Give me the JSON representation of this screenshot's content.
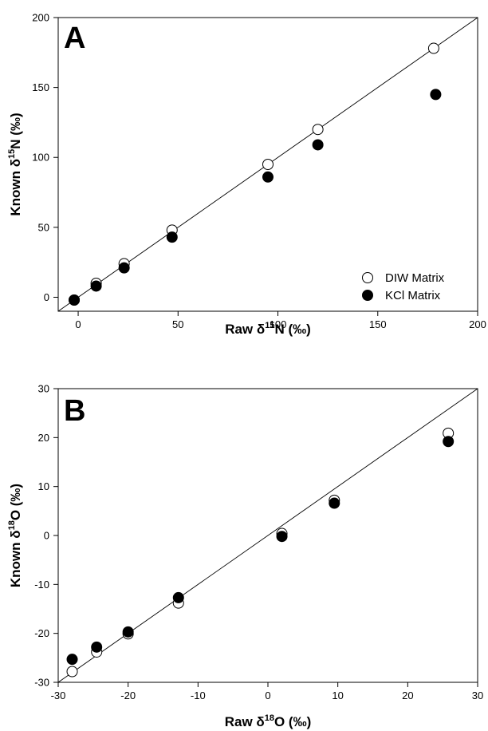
{
  "chart_data": [
    {
      "type": "scatter",
      "panel_label": "A",
      "xlabel": {
        "prefix": "Raw ",
        "delta": "δ",
        "sup": "15",
        "suffix": "N (‰)"
      },
      "ylabel": {
        "prefix": "Known ",
        "delta": "δ",
        "sup": "15",
        "suffix": "N (‰)"
      },
      "xlim": [
        -10,
        200
      ],
      "ylim": [
        -10,
        200
      ],
      "xticks": [
        0,
        50,
        100,
        150,
        200
      ],
      "yticks": [
        0,
        50,
        100,
        150,
        200
      ],
      "grid": false,
      "reference_line": {
        "x": [
          -10,
          200
        ],
        "y": [
          -10,
          200
        ]
      },
      "legend": {
        "position": "bottom-right"
      },
      "series": [
        {
          "name": "DIW Matrix",
          "marker": "open-circle",
          "x": [
            -2,
            9,
            23,
            47,
            95,
            120,
            178
          ],
          "y": [
            -2,
            10,
            24,
            48,
            95,
            120,
            178
          ]
        },
        {
          "name": "KCl Matrix",
          "marker": "filled-circle",
          "x": [
            -2,
            9,
            23,
            47,
            95,
            120,
            179
          ],
          "y": [
            -2,
            8,
            21,
            43,
            86,
            109,
            145
          ]
        }
      ]
    },
    {
      "type": "scatter",
      "panel_label": "B",
      "xlabel": {
        "prefix": "Raw ",
        "delta": "δ",
        "sup": "18",
        "suffix": "O (‰)"
      },
      "ylabel": {
        "prefix": "Known ",
        "delta": "δ",
        "sup": "18",
        "suffix": "O (‰)"
      },
      "xlim": [
        -30,
        30
      ],
      "ylim": [
        -30,
        30
      ],
      "xticks": [
        -30,
        -20,
        -10,
        0,
        10,
        20,
        30
      ],
      "yticks": [
        -30,
        -20,
        -10,
        0,
        10,
        20,
        30
      ],
      "grid": false,
      "reference_line": {
        "x": [
          -30,
          30
        ],
        "y": [
          -30,
          30
        ]
      },
      "series": [
        {
          "name": "DIW Matrix",
          "marker": "open-circle",
          "x": [
            -28.0,
            -24.5,
            -20.0,
            -12.8,
            2.0,
            9.5,
            25.8
          ],
          "y": [
            -27.8,
            -23.8,
            -20.1,
            -13.8,
            0.4,
            7.2,
            20.9
          ]
        },
        {
          "name": "KCl Matrix",
          "marker": "filled-circle",
          "x": [
            -28.0,
            -24.5,
            -20.0,
            -12.8,
            2.0,
            9.5,
            25.8
          ],
          "y": [
            -25.3,
            -22.8,
            -19.7,
            -12.7,
            -0.2,
            6.6,
            19.2
          ]
        }
      ]
    }
  ]
}
